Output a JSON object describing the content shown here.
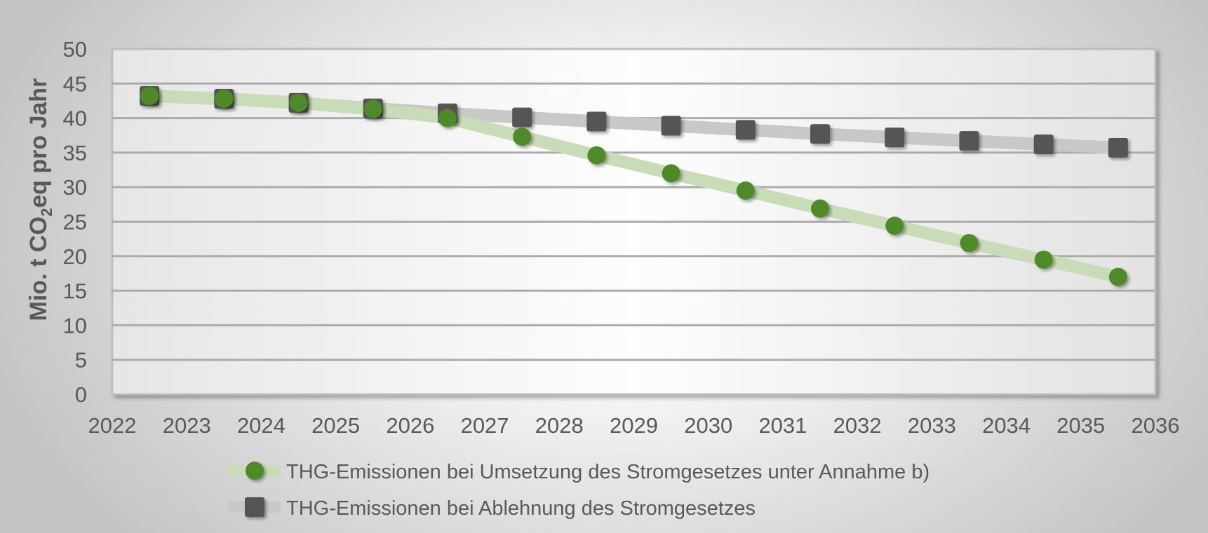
{
  "chart_data": {
    "type": "line",
    "ylabel_parts": [
      "Mio. t CO",
      "2",
      "eq pro Jahr"
    ],
    "x_ticks": [
      "2022",
      "2023",
      "2024",
      "2025",
      "2026",
      "2027",
      "2028",
      "2029",
      "2030",
      "2031",
      "2032",
      "2033",
      "2034",
      "2035",
      "2036"
    ],
    "y_ticks": [
      "0",
      "5",
      "10",
      "15",
      "20",
      "25",
      "30",
      "35",
      "40",
      "45",
      "50"
    ],
    "ylim": [
      0,
      50
    ],
    "xlim": [
      2022,
      2036
    ],
    "grid": true,
    "legend_position": "bottom",
    "series": [
      {
        "name": "THG-Emissionen bei Umsetzung des Stromgesetzes unter Annahme b)",
        "marker": "circle",
        "marker_color": "#4f8a2b",
        "line_color": "#c9dcb8",
        "x": [
          2022.5,
          2023.5,
          2024.5,
          2025.5,
          2026.5,
          2027.5,
          2028.5,
          2029.5,
          2030.5,
          2031.5,
          2032.5,
          2033.5,
          2034.5,
          2035.5
        ],
        "values": [
          43.2,
          42.8,
          42.2,
          41.3,
          40.0,
          37.3,
          34.6,
          32.0,
          29.5,
          26.9,
          24.4,
          21.9,
          19.5,
          17.0
        ]
      },
      {
        "name": "THG-Emissionen bei Ablehnung des Stromgesetzes",
        "marker": "square",
        "marker_color": "#555555",
        "line_color": "#c8c8c8",
        "x": [
          2022.5,
          2023.5,
          2024.5,
          2025.5,
          2026.5,
          2027.5,
          2028.5,
          2029.5,
          2030.5,
          2031.5,
          2032.5,
          2033.5,
          2034.5,
          2035.5
        ],
        "values": [
          43.2,
          42.8,
          42.2,
          41.4,
          40.7,
          40.1,
          39.5,
          38.9,
          38.3,
          37.7,
          37.2,
          36.7,
          36.2,
          35.7
        ]
      }
    ]
  }
}
